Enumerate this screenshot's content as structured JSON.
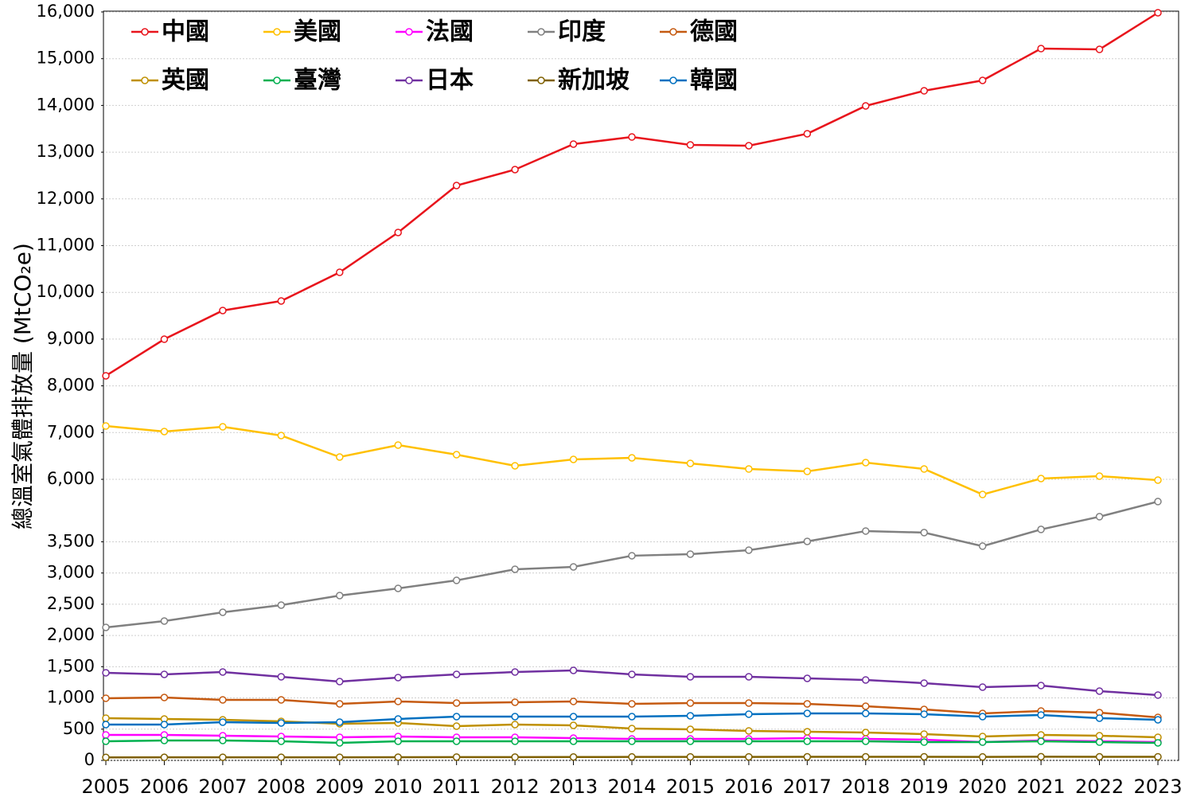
{
  "chart_data": {
    "type": "line",
    "y_label": "總溫室氣體排放量 (MtCO₂e)",
    "x": [
      2005,
      2006,
      2007,
      2008,
      2009,
      2010,
      2011,
      2012,
      2013,
      2014,
      2015,
      2016,
      2017,
      2018,
      2019,
      2020,
      2021,
      2022,
      2023
    ],
    "xlim": [
      2005,
      2023
    ],
    "xticks": [
      2005,
      2006,
      2007,
      2008,
      2009,
      2010,
      2011,
      2012,
      2013,
      2014,
      2015,
      2016,
      2017,
      2018,
      2019,
      2020,
      2021,
      2022,
      2023
    ],
    "ylim": [
      0,
      16000
    ],
    "y_break": [
      4500,
      6000
    ],
    "yticks": [
      0,
      500,
      {
        "value": 1000,
        "label": "1,000"
      },
      {
        "value": 1500,
        "label": "1,500"
      },
      {
        "value": 2000,
        "label": "2,000"
      },
      {
        "value": 2500,
        "label": "2,500"
      },
      {
        "value": 3000,
        "label": "3,000"
      },
      {
        "value": 3500,
        "label": "3,500"
      },
      {
        "value": 6000,
        "label": "6,000"
      },
      {
        "value": 7000,
        "label": "7,000"
      },
      {
        "value": 8000,
        "label": "8,000"
      },
      {
        "value": 9000,
        "label": "9,000"
      },
      {
        "value": 10000,
        "label": "10,000"
      },
      {
        "value": 11000,
        "label": "11,000"
      },
      {
        "value": 12000,
        "label": "12,000"
      },
      {
        "value": 13000,
        "label": "13,000"
      },
      {
        "value": 14000,
        "label": "14,000"
      },
      {
        "value": 15000,
        "label": "15,000"
      },
      {
        "value": 16000,
        "label": "16,000"
      }
    ],
    "grid": true,
    "legend": "upper left",
    "series": [
      {
        "name": "中國",
        "color": "#e8141c",
        "values": [
          8215,
          8998,
          9612,
          9816,
          10429,
          11281,
          12286,
          12627,
          13172,
          13325,
          13155,
          13138,
          13394,
          13990,
          14313,
          14535,
          15216,
          15199,
          15983
        ]
      },
      {
        "name": "美國",
        "color": "#ffc000",
        "values": [
          7141,
          7022,
          7124,
          6937,
          6477,
          6733,
          6528,
          6290,
          6426,
          6460,
          6341,
          6221,
          6170,
          6358,
          6221,
          5676,
          6017,
          6068,
          5983
        ]
      },
      {
        "name": "法國",
        "color": "#ff00ff",
        "values": [
          408,
          408,
          395,
          383,
          370,
          383,
          370,
          370,
          357,
          344,
          344,
          344,
          357,
          344,
          332,
          293,
          319,
          306,
          293
        ]
      },
      {
        "name": "印度",
        "color": "#808080",
        "values": [
          2129,
          2231,
          2371,
          2486,
          2639,
          2754,
          2882,
          3060,
          3098,
          3277,
          3302,
          3366,
          3506,
          3672,
          3647,
          3430,
          3698,
          3902,
          4144
        ]
      },
      {
        "name": "德國",
        "color": "#c55a11",
        "values": [
          995,
          1007,
          969,
          969,
          905,
          944,
          918,
          931,
          944,
          905,
          918,
          918,
          905,
          867,
          816,
          752,
          791,
          765,
          689
        ]
      },
      {
        "name": "英國",
        "color": "#bf9000",
        "values": [
          676,
          663,
          650,
          625,
          587,
          599,
          548,
          574,
          561,
          510,
          497,
          472,
          459,
          446,
          421,
          383,
          408,
          395,
          370
        ]
      },
      {
        "name": "臺灣",
        "color": "#00b050",
        "values": [
          306,
          319,
          319,
          306,
          281,
          306,
          306,
          306,
          306,
          306,
          306,
          306,
          306,
          306,
          293,
          293,
          306,
          293,
          281
        ]
      },
      {
        "name": "日本",
        "color": "#7030a0",
        "values": [
          1403,
          1377,
          1415,
          1339,
          1262,
          1326,
          1377,
          1415,
          1441,
          1377,
          1339,
          1339,
          1313,
          1288,
          1237,
          1173,
          1199,
          1109,
          1046
        ]
      },
      {
        "name": "新加坡",
        "color": "#7f6000",
        "values": [
          48,
          49,
          50,
          50,
          50,
          51,
          53,
          52,
          54,
          55,
          56,
          56,
          57,
          57,
          58,
          55,
          59,
          58,
          58
        ]
      },
      {
        "name": "韓國",
        "color": "#0070c0",
        "values": [
          574,
          574,
          612,
          599,
          612,
          663,
          701,
          701,
          701,
          701,
          714,
          740,
          752,
          752,
          740,
          701,
          727,
          676,
          650
        ]
      }
    ]
  }
}
